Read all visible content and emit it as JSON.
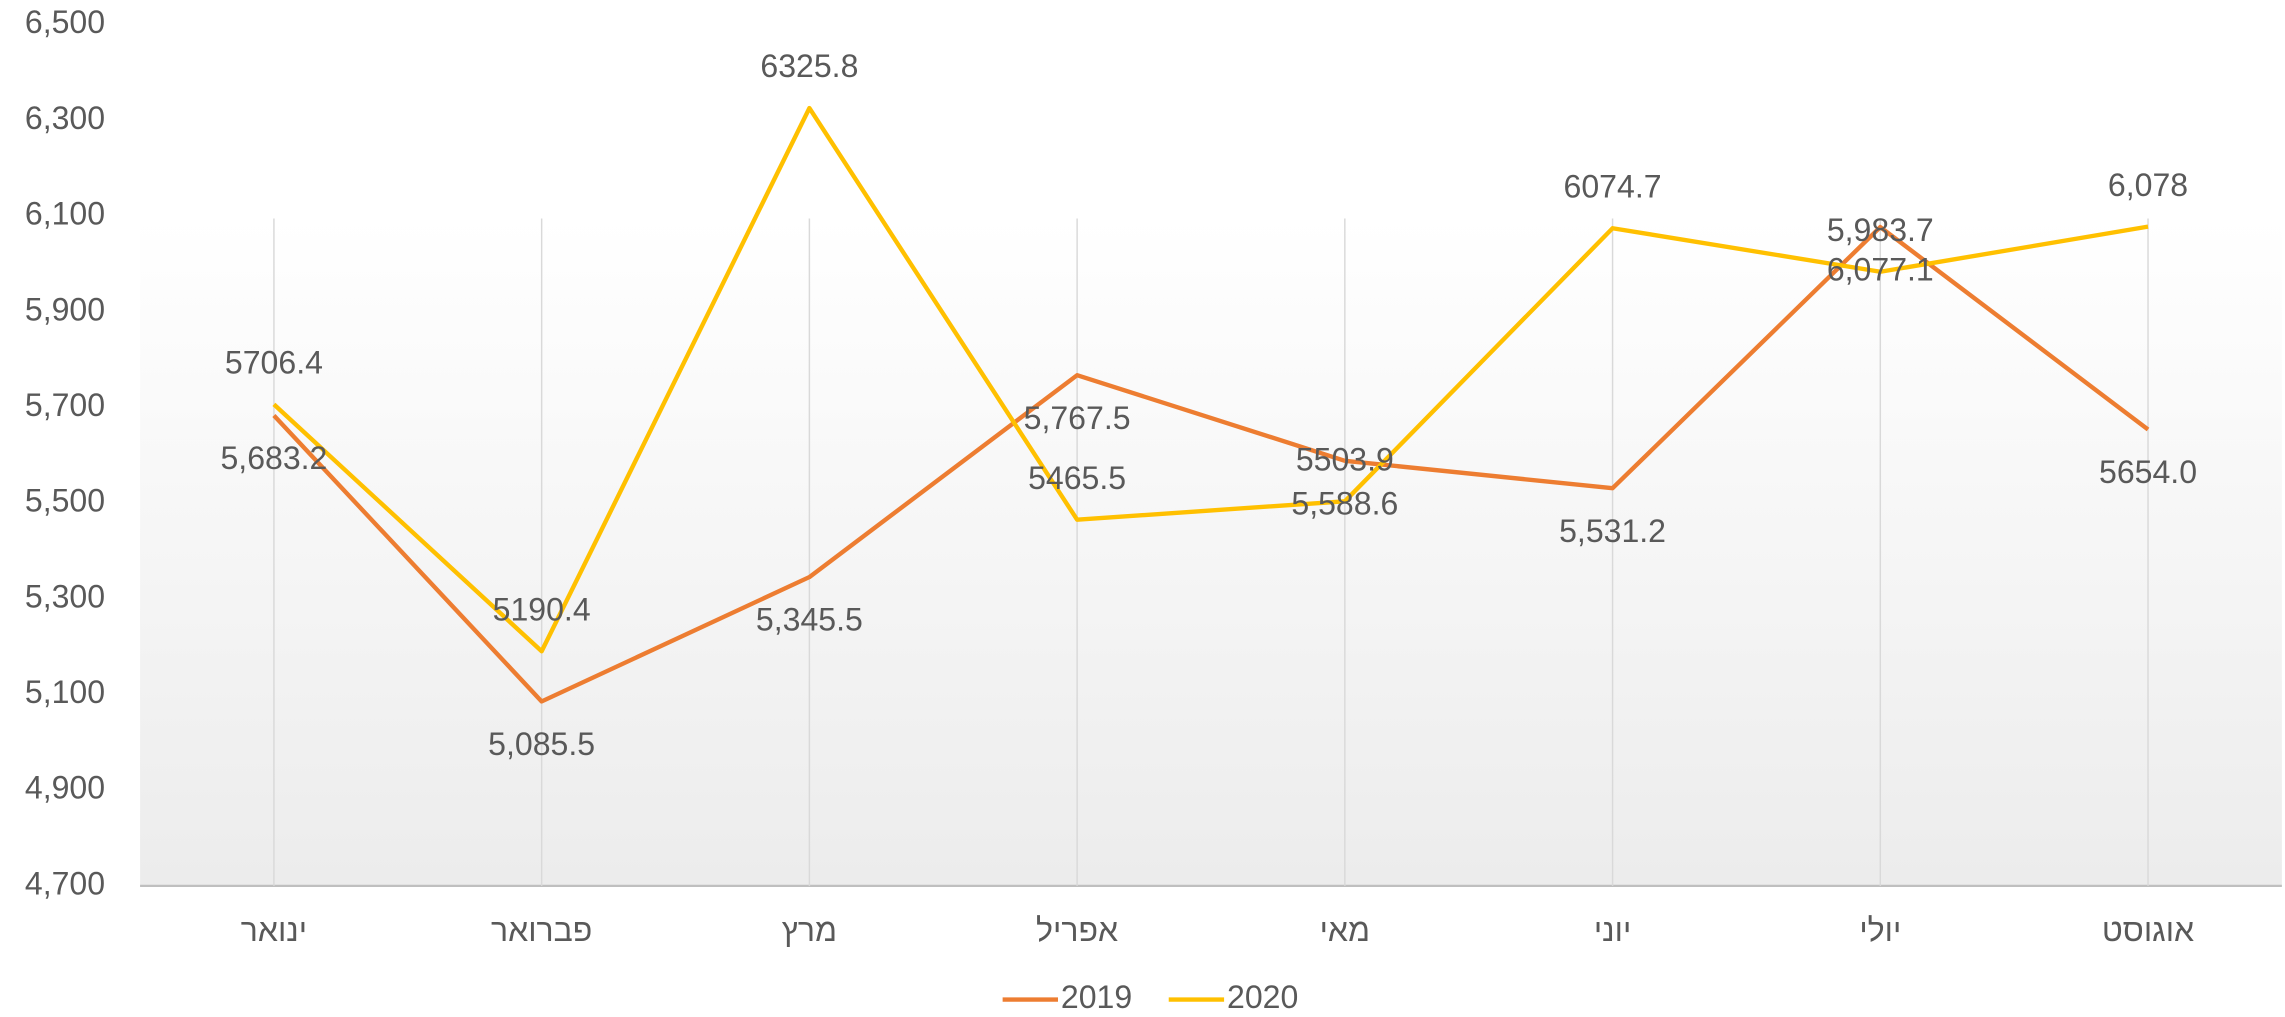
{
  "chart_data": {
    "type": "line",
    "categories": [
      "ינואר",
      "פברואר",
      "מרץ",
      "אפריל",
      "מאי",
      "יוני",
      "יולי",
      "אוגוסט"
    ],
    "series": [
      {
        "name": "2019",
        "color": "#ED7D31",
        "values": [
          5683.2,
          5085.5,
          5345.5,
          5767.5,
          5588.6,
          5531.2,
          6077.1,
          5654.0
        ],
        "value_labels": [
          "5,683.2",
          "5,085.5",
          "5,345.5",
          "5,767.5",
          "5,588.6",
          "5,531.2",
          "6,077.1",
          "5654.0"
        ]
      },
      {
        "name": "2020",
        "color": "#FFC000",
        "values": [
          5706.4,
          5190.4,
          6325.8,
          5465.5,
          5503.9,
          6074.7,
          5983.7,
          6078
        ],
        "value_labels": [
          "5706.4",
          "5190.4",
          "6325.8",
          "5465.5",
          "5503.9",
          "6074.7",
          "5,983.7",
          "6,078"
        ]
      }
    ],
    "ylim": [
      4700,
      6500
    ],
    "yticks": [
      {
        "value": 4700,
        "label": "4,700"
      },
      {
        "value": 4900,
        "label": "4,900"
      },
      {
        "value": 5100,
        "label": "5,100"
      },
      {
        "value": 5300,
        "label": "5,300"
      },
      {
        "value": 5500,
        "label": "5,500"
      },
      {
        "value": 5700,
        "label": "5,700"
      },
      {
        "value": 5900,
        "label": "5,900"
      },
      {
        "value": 6100,
        "label": "6,100"
      },
      {
        "value": 6300,
        "label": "6,300"
      },
      {
        "value": 6500,
        "label": "6,500"
      }
    ],
    "grid": false,
    "legend": "bottom"
  }
}
